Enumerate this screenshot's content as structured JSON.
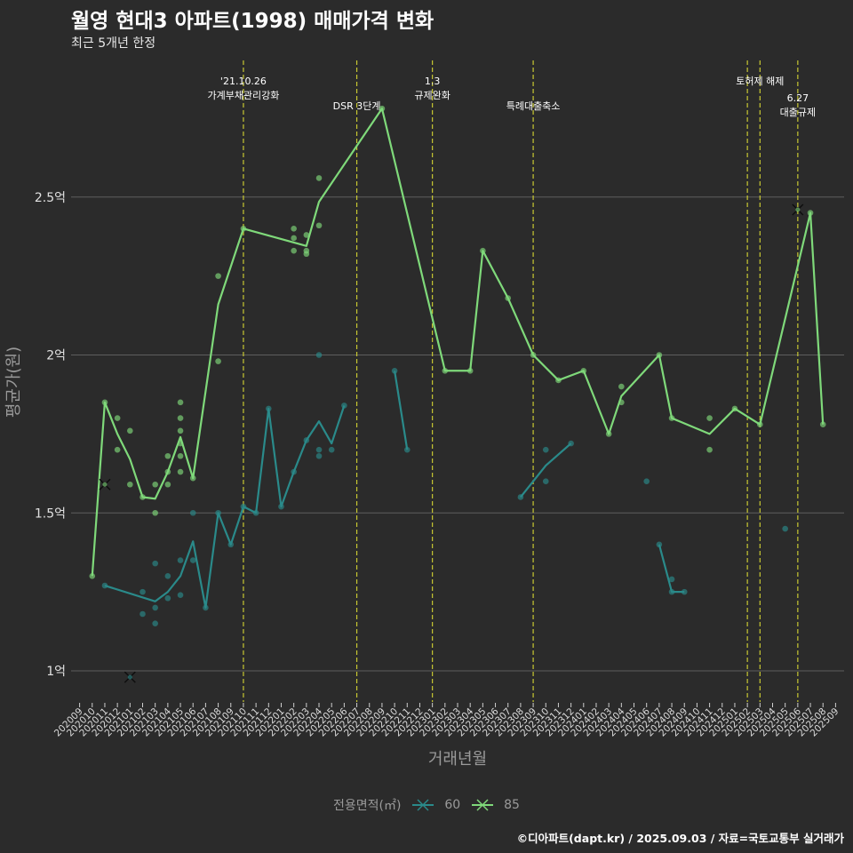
{
  "header": {
    "title": "월영 현대3 아파트(1998) 매매가격 변화",
    "subtitle": "최근 5개년 한정"
  },
  "caption": "©디아파트(dapt.kr) / 2025.09.03 / 자료=국토교통부 실거래가",
  "legend": {
    "title": "전용면적(㎡)"
  },
  "colors": {
    "background": "#2b2b2b",
    "grid": "#5e5e5e",
    "s60": "#2a8a8a",
    "s85": "#7fd97a",
    "event": "#c8c832"
  },
  "chart_data": {
    "type": "line",
    "title": "월영 현대3 아파트(1998) 매매가격 변화",
    "subtitle": "최근 5개년 한정",
    "xlabel": "거래년월",
    "ylabel": "평균가(원)",
    "ylim": [
      0.9,
      2.8
    ],
    "yticks": [
      {
        "value": 1.0,
        "label": "1억"
      },
      {
        "value": 1.5,
        "label": "1.5억"
      },
      {
        "value": 2.0,
        "label": "2억"
      },
      {
        "value": 2.5,
        "label": "2.5억"
      }
    ],
    "categories": [
      "202009",
      "202010",
      "202011",
      "202012",
      "202101",
      "202102",
      "202103",
      "202104",
      "202105",
      "202106",
      "202107",
      "202108",
      "202109",
      "202110",
      "202111",
      "202112",
      "202201",
      "202202",
      "202203",
      "202204",
      "202205",
      "202206",
      "202207",
      "202208",
      "202209",
      "202210",
      "202211",
      "202212",
      "202301",
      "202302",
      "202303",
      "202304",
      "202305",
      "202306",
      "202307",
      "202308",
      "202309",
      "202310",
      "202311",
      "202312",
      "202401",
      "202402",
      "202403",
      "202404",
      "202405",
      "202406",
      "202407",
      "202408",
      "202409",
      "202410",
      "202411",
      "202412",
      "202501",
      "202502",
      "202503",
      "202504",
      "202505",
      "202506",
      "202507",
      "202508",
      "202509"
    ],
    "grid": true,
    "legend_position": "bottom",
    "series": [
      {
        "name": "60",
        "line": [
          [
            "202011",
            1.27
          ],
          [
            "202103",
            1.22
          ],
          [
            "202104",
            1.25
          ],
          [
            "202105",
            1.3
          ],
          [
            "202106",
            1.41
          ],
          [
            "202107",
            1.2
          ],
          [
            "202108",
            1.5
          ],
          [
            "202109",
            1.4
          ],
          [
            "202110",
            1.52
          ],
          [
            "202111",
            1.5
          ],
          [
            "202112",
            1.83
          ],
          [
            "202201",
            1.52
          ],
          [
            "202202",
            1.63
          ],
          [
            "202203",
            1.73
          ],
          [
            "202204",
            1.79
          ],
          [
            "202205",
            1.72
          ],
          [
            "202206",
            1.84
          ],
          null,
          [
            "202210",
            1.95
          ],
          [
            "202211",
            1.7
          ],
          null,
          [
            "202308",
            1.55
          ],
          [
            "202310",
            1.65
          ],
          [
            "202312",
            1.72
          ],
          null,
          [
            "202407",
            1.4
          ],
          [
            "202408",
            1.25
          ],
          [
            "202409",
            1.25
          ]
        ],
        "points": [
          [
            "202011",
            1.27
          ],
          [
            "202102",
            1.25
          ],
          [
            "202102",
            1.18
          ],
          [
            "202103",
            1.2
          ],
          [
            "202103",
            1.15
          ],
          [
            "202103",
            1.34
          ],
          [
            "202104",
            1.23
          ],
          [
            "202104",
            1.3
          ],
          [
            "202105",
            1.35
          ],
          [
            "202105",
            1.24
          ],
          [
            "202106",
            1.35
          ],
          [
            "202106",
            1.5
          ],
          [
            "202107",
            1.2
          ],
          [
            "202108",
            1.5
          ],
          [
            "202109",
            1.4
          ],
          [
            "202110",
            1.52
          ],
          [
            "202111",
            1.5
          ],
          [
            "202112",
            1.83
          ],
          [
            "202201",
            1.52
          ],
          [
            "202202",
            1.63
          ],
          [
            "202203",
            1.73
          ],
          [
            "202204",
            2.0
          ],
          [
            "202204",
            1.7
          ],
          [
            "202204",
            1.68
          ],
          [
            "202205",
            1.7
          ],
          [
            "202206",
            1.84
          ],
          [
            "202210",
            1.95
          ],
          [
            "202211",
            1.7
          ],
          [
            "202308",
            1.55
          ],
          [
            "202310",
            1.6
          ],
          [
            "202310",
            1.7
          ],
          [
            "202312",
            1.72
          ],
          [
            "202406",
            1.6
          ],
          [
            "202407",
            1.4
          ],
          [
            "202408",
            1.25
          ],
          [
            "202408",
            1.29
          ],
          [
            "202409",
            1.25
          ],
          [
            "202505",
            1.45
          ]
        ],
        "cancelled": [
          [
            "202101",
            0.98
          ]
        ]
      },
      {
        "name": "85",
        "line": [
          [
            "202010",
            1.3
          ],
          [
            "202011",
            1.85
          ],
          [
            "202012",
            1.75
          ],
          [
            "202101",
            1.67
          ],
          [
            "202102",
            1.55
          ],
          [
            "202103",
            1.545
          ],
          [
            "202104",
            1.63
          ],
          [
            "202105",
            1.74
          ],
          [
            "202106",
            1.61
          ],
          [
            "202108",
            2.16
          ],
          [
            "202110",
            2.4
          ],
          [
            "202203",
            2.345
          ],
          [
            "202204",
            2.485
          ],
          [
            "202209",
            2.78
          ],
          [
            "202302",
            1.95
          ],
          [
            "202304",
            1.95
          ],
          [
            "202305",
            2.33
          ],
          [
            "202307",
            2.18
          ],
          [
            "202309",
            2.0
          ],
          [
            "202311",
            1.92
          ],
          [
            "202401",
            1.95
          ],
          [
            "202403",
            1.75
          ],
          [
            "202404",
            1.87
          ],
          [
            "202407",
            2.0
          ],
          [
            "202408",
            1.8
          ],
          [
            "202411",
            1.75
          ],
          [
            "202501",
            1.83
          ],
          [
            "202503",
            1.78
          ],
          [
            "202507",
            2.45
          ],
          [
            "202508",
            1.78
          ]
        ],
        "points": [
          [
            "202010",
            1.3
          ],
          [
            "202011",
            1.85
          ],
          [
            "202012",
            1.8
          ],
          [
            "202012",
            1.7
          ],
          [
            "202101",
            1.76
          ],
          [
            "202101",
            1.59
          ],
          [
            "202102",
            1.55
          ],
          [
            "202103",
            1.59
          ],
          [
            "202103",
            1.5
          ],
          [
            "202104",
            1.63
          ],
          [
            "202104",
            1.68
          ],
          [
            "202104",
            1.59
          ],
          [
            "202105",
            1.85
          ],
          [
            "202105",
            1.8
          ],
          [
            "202105",
            1.76
          ],
          [
            "202105",
            1.72
          ],
          [
            "202105",
            1.68
          ],
          [
            "202105",
            1.63
          ],
          [
            "202106",
            1.61
          ],
          [
            "202108",
            2.25
          ],
          [
            "202108",
            1.98
          ],
          [
            "202110",
            2.4
          ],
          [
            "202202",
            2.4
          ],
          [
            "202202",
            2.37
          ],
          [
            "202202",
            2.33
          ],
          [
            "202203",
            2.38
          ],
          [
            "202203",
            2.33
          ],
          [
            "202203",
            2.32
          ],
          [
            "202204",
            2.56
          ],
          [
            "202204",
            2.41
          ],
          [
            "202209",
            2.78
          ],
          [
            "202302",
            1.95
          ],
          [
            "202304",
            1.95
          ],
          [
            "202305",
            2.33
          ],
          [
            "202307",
            2.18
          ],
          [
            "202309",
            2.0
          ],
          [
            "202311",
            1.92
          ],
          [
            "202401",
            1.95
          ],
          [
            "202403",
            1.75
          ],
          [
            "202404",
            1.9
          ],
          [
            "202404",
            1.85
          ],
          [
            "202407",
            2.0
          ],
          [
            "202408",
            1.8
          ],
          [
            "202411",
            1.8
          ],
          [
            "202411",
            1.7
          ],
          [
            "202501",
            1.83
          ],
          [
            "202503",
            1.78
          ],
          [
            "202507",
            2.45
          ],
          [
            "202508",
            1.78
          ]
        ],
        "cancelled": [
          [
            "202011",
            1.59
          ],
          [
            "202506",
            2.46
          ]
        ]
      }
    ],
    "events": [
      {
        "x": "202110",
        "lines": [
          "'21.10.26",
          "가계부채관리강화"
        ],
        "row": 0
      },
      {
        "x": "202207",
        "lines": [
          "DSR 3단계"
        ],
        "row": 1
      },
      {
        "x": "202301",
        "lines": [
          "1.3",
          "규제완화"
        ],
        "row": 0
      },
      {
        "x": "202309",
        "lines": [
          "특례대출축소"
        ],
        "row": 1
      },
      {
        "x": "202502",
        "lines": [],
        "row": 0
      },
      {
        "x": "202503",
        "lines": [
          "토허제 해제"
        ],
        "row": 0
      },
      {
        "x": "202506",
        "lines": [
          "6.27",
          "대출규제"
        ],
        "row": 1
      }
    ]
  }
}
